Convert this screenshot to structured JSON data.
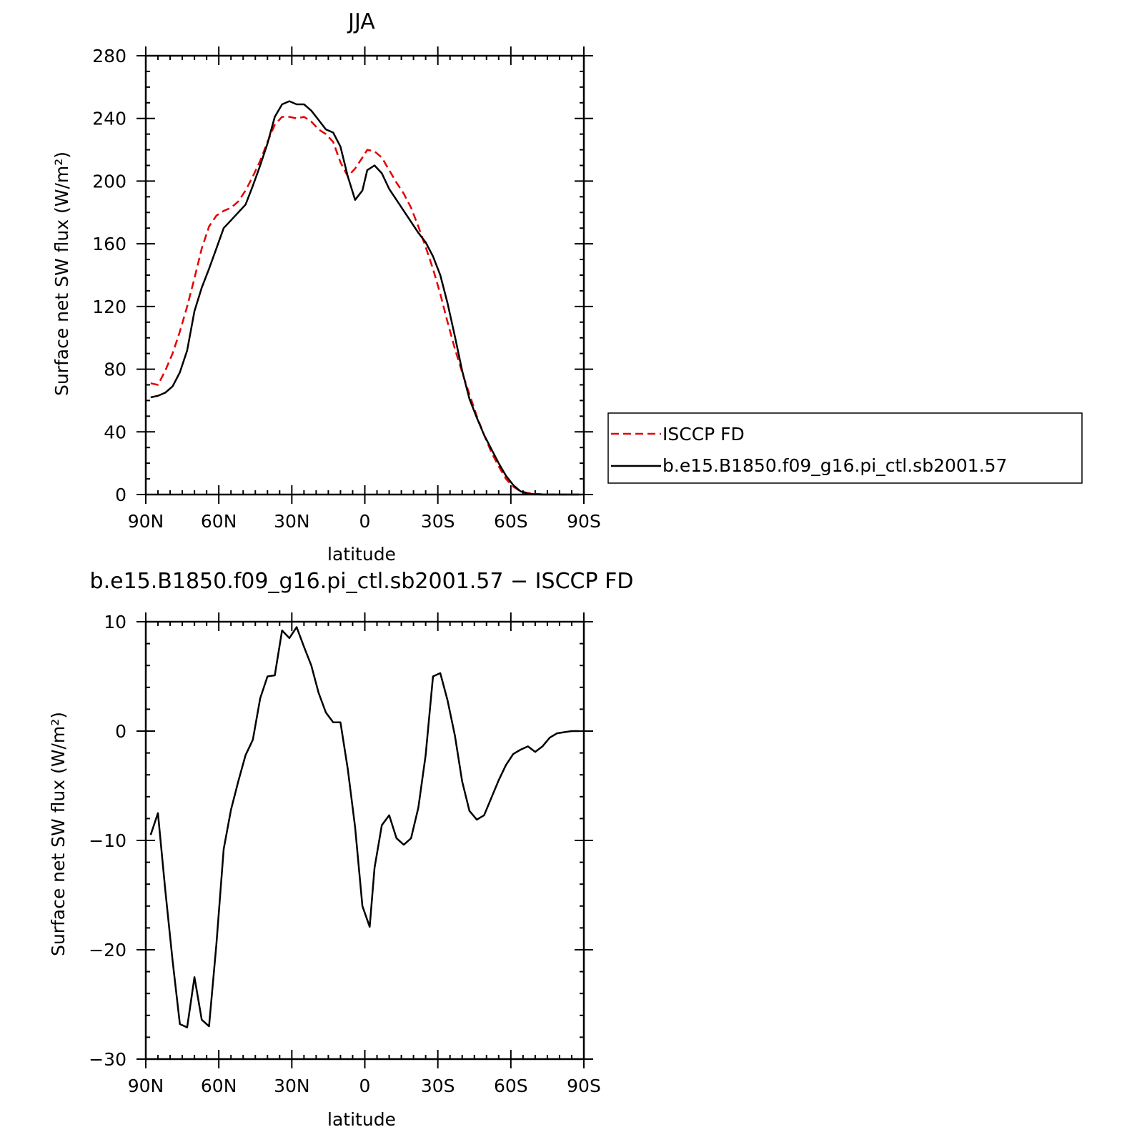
{
  "chart_data": [
    {
      "type": "line",
      "title": "JJA",
      "xlabel": "latitude",
      "ylabel": "Surface net SW flux (W/m²)",
      "xlim": [
        90,
        -90
      ],
      "ylim": [
        0,
        280
      ],
      "xticks": [
        {
          "value": 90,
          "label": "90N"
        },
        {
          "value": 60,
          "label": "60N"
        },
        {
          "value": 30,
          "label": "30N"
        },
        {
          "value": 0,
          "label": "0"
        },
        {
          "value": -30,
          "label": "30S"
        },
        {
          "value": -60,
          "label": "60S"
        },
        {
          "value": -90,
          "label": "90S"
        }
      ],
      "yticks": [
        {
          "value": 0,
          "label": "0"
        },
        {
          "value": 40,
          "label": "40"
        },
        {
          "value": 80,
          "label": "80"
        },
        {
          "value": 120,
          "label": "120"
        },
        {
          "value": 160,
          "label": "160"
        },
        {
          "value": 200,
          "label": "200"
        },
        {
          "value": 240,
          "label": "240"
        },
        {
          "value": 280,
          "label": "280"
        }
      ],
      "legend_position": "right",
      "series": [
        {
          "name": "ISCCP FD",
          "color": "#e60000",
          "dash": true,
          "points": [
            [
              88,
              71
            ],
            [
              85,
              70
            ],
            [
              82,
              79
            ],
            [
              79,
              90
            ],
            [
              76,
              104
            ],
            [
              73,
              120
            ],
            [
              70,
              138
            ],
            [
              67,
              157
            ],
            [
              64,
              171
            ],
            [
              61,
              178
            ],
            [
              58,
              181
            ],
            [
              55,
              183
            ],
            [
              52,
              187
            ],
            [
              49,
              194
            ],
            [
              46,
              203
            ],
            [
              43,
              213
            ],
            [
              40,
              225
            ],
            [
              37,
              236
            ],
            [
              34,
              241
            ],
            [
              31,
              241
            ],
            [
              28,
              240
            ],
            [
              25,
              241
            ],
            [
              22,
              238
            ],
            [
              19,
              233
            ],
            [
              16,
              230
            ],
            [
              13,
              225
            ],
            [
              10,
              212
            ],
            [
              7,
              203
            ],
            [
              4,
              208
            ],
            [
              1,
              215
            ],
            [
              -1,
              220
            ],
            [
              -4,
              219
            ],
            [
              -7,
              215
            ],
            [
              -10,
              207
            ],
            [
              -13,
              199
            ],
            [
              -16,
              192
            ],
            [
              -19,
              183
            ],
            [
              -22,
              171
            ],
            [
              -25,
              158
            ],
            [
              -28,
              144
            ],
            [
              -31,
              128
            ],
            [
              -34,
              110
            ],
            [
              -37,
              93
            ],
            [
              -40,
              78
            ],
            [
              -43,
              64
            ],
            [
              -46,
              50
            ],
            [
              -49,
              38
            ],
            [
              -52,
              27
            ],
            [
              -55,
              18
            ],
            [
              -58,
              10
            ],
            [
              -61,
              5
            ],
            [
              -64,
              2
            ],
            [
              -67,
              1
            ],
            [
              -70,
              0.5
            ],
            [
              -73,
              0.2
            ],
            [
              -76,
              0.1
            ],
            [
              -80,
              0
            ],
            [
              -84,
              0
            ],
            [
              -88,
              0
            ]
          ]
        },
        {
          "name": "b.e15.B1850.f09_g16.pi_ctl.sb2001.57",
          "color": "#000000",
          "dash": false,
          "points": [
            [
              88,
              62
            ],
            [
              85,
              63
            ],
            [
              82,
              65
            ],
            [
              79,
              69
            ],
            [
              76,
              78
            ],
            [
              73,
              92
            ],
            [
              70,
              117
            ],
            [
              67,
              132
            ],
            [
              64,
              144
            ],
            [
              61,
              157
            ],
            [
              58,
              170
            ],
            [
              55,
              175
            ],
            [
              52,
              180
            ],
            [
              49,
              185
            ],
            [
              46,
              197
            ],
            [
              43,
              210
            ],
            [
              40,
              224
            ],
            [
              37,
              241
            ],
            [
              34,
              249
            ],
            [
              31,
              251
            ],
            [
              28,
              249
            ],
            [
              25,
              249
            ],
            [
              22,
              245
            ],
            [
              19,
              239
            ],
            [
              16,
              233
            ],
            [
              13,
              231
            ],
            [
              10,
              222
            ],
            [
              7,
              203
            ],
            [
              4,
              188
            ],
            [
              1,
              194
            ],
            [
              -1,
              207
            ],
            [
              -4,
              210
            ],
            [
              -7,
              205
            ],
            [
              -10,
              195
            ],
            [
              -13,
              188
            ],
            [
              -16,
              181
            ],
            [
              -19,
              174
            ],
            [
              -22,
              167
            ],
            [
              -25,
              161
            ],
            [
              -28,
              152
            ],
            [
              -31,
              140
            ],
            [
              -34,
              122
            ],
            [
              -37,
              101
            ],
            [
              -40,
              79
            ],
            [
              -43,
              61
            ],
            [
              -46,
              49
            ],
            [
              -49,
              38
            ],
            [
              -52,
              29
            ],
            [
              -55,
              20
            ],
            [
              -58,
              12
            ],
            [
              -61,
              6
            ],
            [
              -64,
              2
            ],
            [
              -67,
              0.5
            ],
            [
              -70,
              0.2
            ],
            [
              -73,
              0
            ],
            [
              -76,
              0
            ],
            [
              -80,
              0
            ],
            [
              -84,
              0
            ],
            [
              -88,
              0
            ]
          ]
        }
      ]
    },
    {
      "type": "line",
      "title": "b.e15.B1850.f09_g16.pi_ctl.sb2001.57 − ISCCP FD",
      "xlabel": "latitude",
      "ylabel": "Surface net SW flux (W/m²)",
      "xlim": [
        90,
        -90
      ],
      "ylim": [
        -30,
        10
      ],
      "xticks": [
        {
          "value": 90,
          "label": "90N"
        },
        {
          "value": 60,
          "label": "60N"
        },
        {
          "value": 30,
          "label": "30N"
        },
        {
          "value": 0,
          "label": "0"
        },
        {
          "value": -30,
          "label": "30S"
        },
        {
          "value": -60,
          "label": "60S"
        },
        {
          "value": -90,
          "label": "90S"
        }
      ],
      "yticks": [
        {
          "value": -30,
          "label": "−30"
        },
        {
          "value": -20,
          "label": "−20"
        },
        {
          "value": -10,
          "label": "−10"
        },
        {
          "value": 0,
          "label": "0"
        },
        {
          "value": 10,
          "label": "10"
        }
      ],
      "series": [
        {
          "color": "#000000",
          "dash": false,
          "points": [
            [
              88,
              -9.5
            ],
            [
              85,
              -7.5
            ],
            [
              82,
              -14.5
            ],
            [
              79,
              -21
            ],
            [
              76,
              -26.8
            ],
            [
              73,
              -27.1
            ],
            [
              70,
              -22.5
            ],
            [
              67,
              -26.4
            ],
            [
              64,
              -27
            ],
            [
              61,
              -19.5
            ],
            [
              58,
              -10.8
            ],
            [
              55,
              -7.2
            ],
            [
              52,
              -4.6
            ],
            [
              49,
              -2.2
            ],
            [
              46,
              -0.8
            ],
            [
              43,
              3
            ],
            [
              40,
              5
            ],
            [
              37,
              5.1
            ],
            [
              34,
              9.2
            ],
            [
              31,
              8.5
            ],
            [
              28,
              9.5
            ],
            [
              25,
              7.7
            ],
            [
              22,
              6
            ],
            [
              19,
              3.5
            ],
            [
              16,
              1.7
            ],
            [
              13,
              0.8
            ],
            [
              10,
              0.8
            ],
            [
              7,
              -3.5
            ],
            [
              4,
              -8.8
            ],
            [
              1,
              -16
            ],
            [
              -2,
              -17.9
            ],
            [
              -4,
              -12.5
            ],
            [
              -7,
              -8.6
            ],
            [
              -10,
              -7.7
            ],
            [
              -13,
              -9.8
            ],
            [
              -16,
              -10.4
            ],
            [
              -19,
              -9.8
            ],
            [
              -22,
              -7
            ],
            [
              -25,
              -2.2
            ],
            [
              -28,
              5
            ],
            [
              -31,
              5.3
            ],
            [
              -34,
              2.8
            ],
            [
              -37,
              -0.4
            ],
            [
              -40,
              -4.6
            ],
            [
              -43,
              -7.3
            ],
            [
              -46,
              -8.1
            ],
            [
              -49,
              -7.7
            ],
            [
              -52,
              -6.1
            ],
            [
              -55,
              -4.5
            ],
            [
              -58,
              -3.1
            ],
            [
              -61,
              -2.1
            ],
            [
              -64,
              -1.7
            ],
            [
              -67,
              -1.4
            ],
            [
              -70,
              -1.9
            ],
            [
              -73,
              -1.4
            ],
            [
              -76,
              -0.6
            ],
            [
              -79,
              -0.2
            ],
            [
              -82,
              -0.1
            ],
            [
              -85,
              0
            ],
            [
              -88,
              0
            ]
          ]
        }
      ]
    }
  ]
}
